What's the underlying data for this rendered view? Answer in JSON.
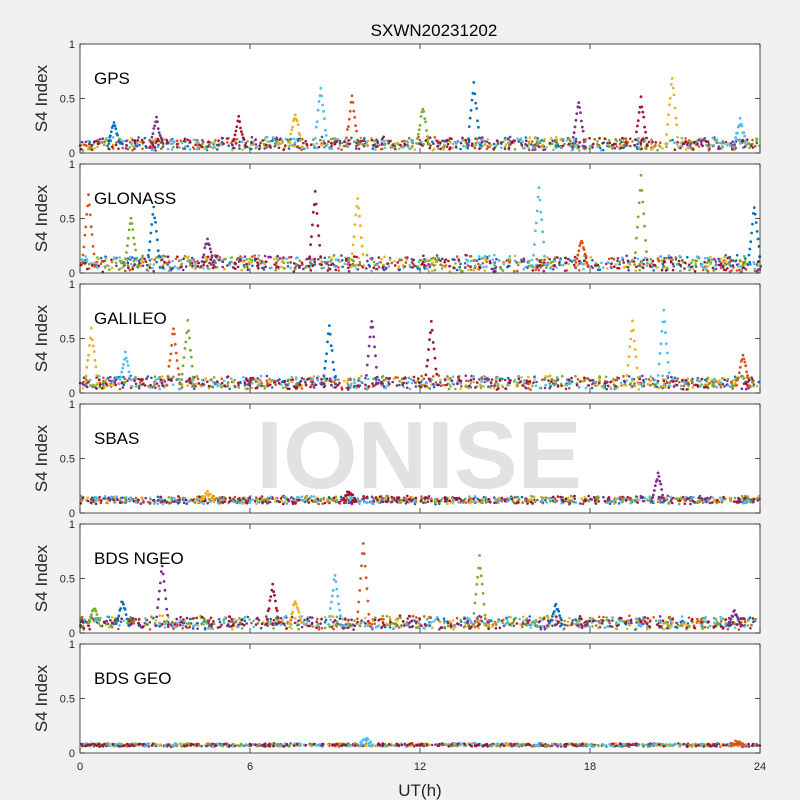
{
  "title": "SXWN20231202",
  "watermark": "IONISE",
  "colors": {
    "background": "#f0f0f0",
    "axes_bg": "#ffffff",
    "series": [
      "#0072BD",
      "#D95319",
      "#EDB120",
      "#7E2F8E",
      "#77AC30",
      "#4DBEEE",
      "#A2142F"
    ]
  },
  "chart_data": [
    {
      "type": "scatter",
      "panel_label": "GPS",
      "ylabel": "S4 Index",
      "xlabel": "",
      "xlim": [
        0,
        24
      ],
      "ylim": [
        0,
        1
      ],
      "xticks": [
        0,
        6,
        12,
        18,
        24
      ],
      "yticks": [
        0,
        0.5,
        1
      ],
      "x_tick_labels_visible": false,
      "grid": false,
      "baseline": 0.07,
      "noise": 0.05,
      "spikes": [
        {
          "x": 1.2,
          "y": 0.27
        },
        {
          "x": 2.7,
          "y": 0.31
        },
        {
          "x": 5.6,
          "y": 0.32
        },
        {
          "x": 7.6,
          "y": 0.37
        },
        {
          "x": 8.5,
          "y": 0.61
        },
        {
          "x": 9.6,
          "y": 0.51
        },
        {
          "x": 12.1,
          "y": 0.42
        },
        {
          "x": 13.9,
          "y": 0.63
        },
        {
          "x": 17.6,
          "y": 0.47
        },
        {
          "x": 19.8,
          "y": 0.5
        },
        {
          "x": 20.9,
          "y": 0.7
        },
        {
          "x": 23.3,
          "y": 0.3
        }
      ]
    },
    {
      "type": "scatter",
      "panel_label": "GLONASS",
      "ylabel": "S4 Index",
      "xlabel": "",
      "xlim": [
        0,
        24
      ],
      "ylim": [
        0,
        1
      ],
      "xticks": [
        0,
        6,
        12,
        18,
        24
      ],
      "yticks": [
        0,
        0.5,
        1
      ],
      "x_tick_labels_visible": false,
      "grid": false,
      "baseline": 0.07,
      "noise": 0.06,
      "spikes": [
        {
          "x": 0.3,
          "y": 0.72
        },
        {
          "x": 1.8,
          "y": 0.52
        },
        {
          "x": 2.6,
          "y": 0.6
        },
        {
          "x": 4.5,
          "y": 0.32
        },
        {
          "x": 8.3,
          "y": 0.73
        },
        {
          "x": 9.8,
          "y": 0.7
        },
        {
          "x": 16.2,
          "y": 0.78
        },
        {
          "x": 17.7,
          "y": 0.3
        },
        {
          "x": 19.8,
          "y": 0.88
        },
        {
          "x": 23.8,
          "y": 0.62
        }
      ]
    },
    {
      "type": "scatter",
      "panel_label": "GALILEO",
      "ylabel": "S4 Index",
      "xlabel": "",
      "xlim": [
        0,
        24
      ],
      "ylim": [
        0,
        1
      ],
      "xticks": [
        0,
        6,
        12,
        18,
        24
      ],
      "yticks": [
        0,
        0.5,
        1
      ],
      "x_tick_labels_visible": false,
      "grid": false,
      "baseline": 0.08,
      "noise": 0.05,
      "spikes": [
        {
          "x": 0.4,
          "y": 0.58
        },
        {
          "x": 1.6,
          "y": 0.36
        },
        {
          "x": 3.3,
          "y": 0.6
        },
        {
          "x": 3.8,
          "y": 0.65
        },
        {
          "x": 8.8,
          "y": 0.6
        },
        {
          "x": 10.3,
          "y": 0.67
        },
        {
          "x": 12.4,
          "y": 0.64
        },
        {
          "x": 19.5,
          "y": 0.65
        },
        {
          "x": 20.6,
          "y": 0.76
        },
        {
          "x": 23.4,
          "y": 0.35
        }
      ]
    },
    {
      "type": "scatter",
      "panel_label": "SBAS",
      "ylabel": "S4 Index",
      "xlabel": "",
      "xlim": [
        0,
        24
      ],
      "ylim": [
        0,
        1
      ],
      "xticks": [
        0,
        6,
        12,
        18,
        24
      ],
      "yticks": [
        0,
        0.5,
        1
      ],
      "x_tick_labels_visible": false,
      "grid": false,
      "baseline": 0.11,
      "noise": 0.03,
      "spikes": [
        {
          "x": 20.4,
          "y": 0.35
        },
        {
          "x": 9.5,
          "y": 0.2
        },
        {
          "x": 4.5,
          "y": 0.19
        }
      ]
    },
    {
      "type": "scatter",
      "panel_label": "BDS NGEO",
      "ylabel": "S4 Index",
      "xlabel": "",
      "xlim": [
        0,
        24
      ],
      "ylim": [
        0,
        1
      ],
      "xticks": [
        0,
        6,
        12,
        18,
        24
      ],
      "yticks": [
        0,
        0.5,
        1
      ],
      "x_tick_labels_visible": false,
      "grid": false,
      "baseline": 0.08,
      "noise": 0.05,
      "spikes": [
        {
          "x": 0.5,
          "y": 0.23
        },
        {
          "x": 1.5,
          "y": 0.3
        },
        {
          "x": 2.9,
          "y": 0.62
        },
        {
          "x": 6.8,
          "y": 0.45
        },
        {
          "x": 7.6,
          "y": 0.3
        },
        {
          "x": 9.0,
          "y": 0.54
        },
        {
          "x": 10.0,
          "y": 0.84
        },
        {
          "x": 14.1,
          "y": 0.7
        },
        {
          "x": 16.8,
          "y": 0.26
        },
        {
          "x": 23.1,
          "y": 0.2
        }
      ]
    },
    {
      "type": "scatter",
      "panel_label": "BDS GEO",
      "ylabel": "S4 Index",
      "xlabel": "UT(h)",
      "xlim": [
        0,
        24
      ],
      "ylim": [
        0,
        1
      ],
      "xticks": [
        0,
        6,
        12,
        18,
        24
      ],
      "yticks": [
        0,
        0.5,
        1
      ],
      "x_tick_labels_visible": true,
      "grid": false,
      "baseline": 0.07,
      "noise": 0.012,
      "spikes": [
        {
          "x": 10.1,
          "y": 0.13
        },
        {
          "x": 23.2,
          "y": 0.1
        }
      ]
    }
  ]
}
